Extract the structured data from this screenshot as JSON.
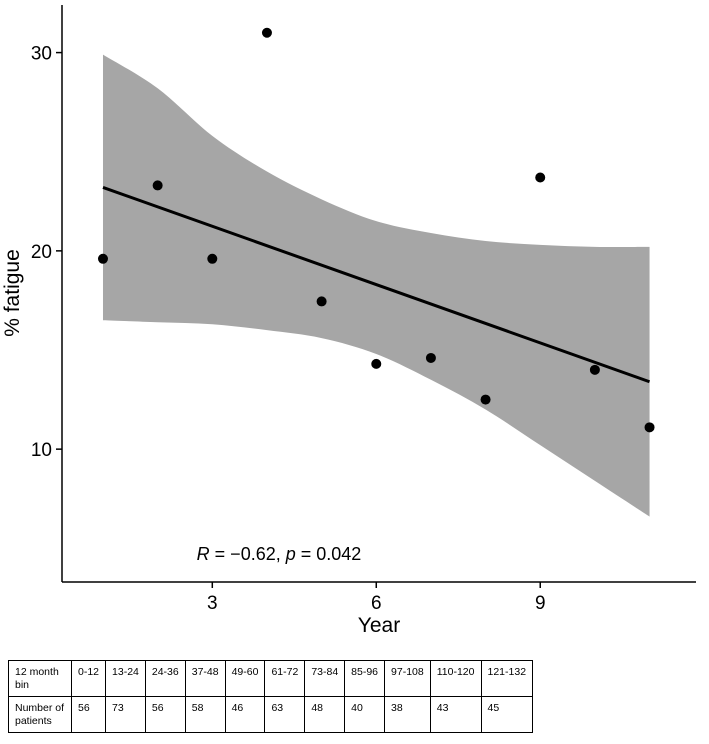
{
  "chart_data": {
    "type": "scatter",
    "xlabel": "Year",
    "ylabel": "% fatigue",
    "xlim": [
      0.25,
      11.85
    ],
    "ylim": [
      3.3,
      32.4
    ],
    "xticks": [
      3,
      6,
      9
    ],
    "yticks": [
      10,
      20,
      30
    ],
    "grid": false,
    "points": {
      "x": [
        1,
        2,
        3,
        4,
        5,
        6,
        7,
        8,
        9,
        10,
        11
      ],
      "y": [
        19.6,
        23.3,
        19.6,
        31.0,
        17.45,
        14.3,
        14.6,
        12.5,
        23.7,
        14.0,
        11.1
      ]
    },
    "fit_line": {
      "x": [
        1,
        11
      ],
      "y": [
        23.2,
        13.4
      ]
    },
    "confidence_band": {
      "x": [
        1,
        2,
        3,
        4,
        5,
        6,
        7,
        8,
        9,
        10,
        11
      ],
      "upper": [
        29.9,
        28.2,
        25.8,
        24.0,
        22.6,
        21.5,
        20.9,
        20.5,
        20.3,
        20.2,
        20.2
      ],
      "lower": [
        16.5,
        16.4,
        16.3,
        16.0,
        15.6,
        14.8,
        13.5,
        12.0,
        10.2,
        8.4,
        6.6
      ]
    },
    "annotation": {
      "r_label": "R",
      "r_text": " = −0.62, ",
      "p_label": "p",
      "p_text": " = 0.042"
    },
    "colors": {
      "band": "#a6a6a6",
      "line": "#000000",
      "points": "#000000"
    }
  },
  "table": {
    "rows": [
      {
        "label": "12 month bin",
        "cells": [
          "0-12",
          "13-24",
          "24-36",
          "37-48",
          "49-60",
          "61-72",
          "73-84",
          "85-96",
          "97-108",
          "110-120",
          "121-132"
        ]
      },
      {
        "label": "Number of patients",
        "cells": [
          "56",
          "73",
          "56",
          "58",
          "46",
          "63",
          "48",
          "40",
          "38",
          "43",
          "45"
        ]
      }
    ]
  }
}
